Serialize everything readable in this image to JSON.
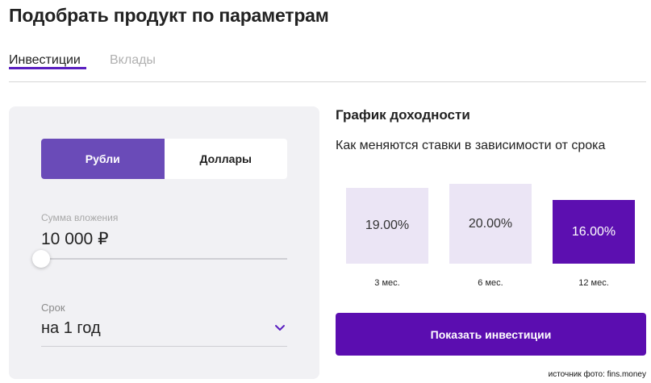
{
  "page": {
    "title": "Подобрать продукт по параметрам"
  },
  "tabs": [
    {
      "label": "Инвестиции",
      "active": true
    },
    {
      "label": "Вклады",
      "active": false
    }
  ],
  "form": {
    "currency": {
      "options": [
        "Рубли",
        "Доллары"
      ],
      "selected": "Рубли"
    },
    "amount": {
      "label": "Сумма вложения",
      "value": "10 000 ₽",
      "slider_level": 0
    },
    "term": {
      "label": "Срок",
      "value": "на 1 год",
      "icon": "chevron-down-icon"
    }
  },
  "chart": {
    "title": "График доходности",
    "subtitle": "Как меняются ставки в зависимости от срока"
  },
  "chart_data": {
    "type": "bar",
    "categories": [
      "3 мес.",
      "6 мес.",
      "12 мес."
    ],
    "values": [
      19.0,
      20.0,
      16.0
    ],
    "value_labels": [
      "19.00%",
      "20.00%",
      "16.00%"
    ],
    "highlighted": "12 мес.",
    "colors": {
      "default": "#ebe5f5",
      "highlighted": "#5c0fb0"
    }
  },
  "actions": {
    "show_button": "Показать инвестиции"
  },
  "footer": {
    "source": "источник фото: finѕ.money"
  },
  "colors": {
    "accent": "#5b0db0",
    "currency_active": "#6a4bb8",
    "card_bg": "#f1f1f4"
  }
}
